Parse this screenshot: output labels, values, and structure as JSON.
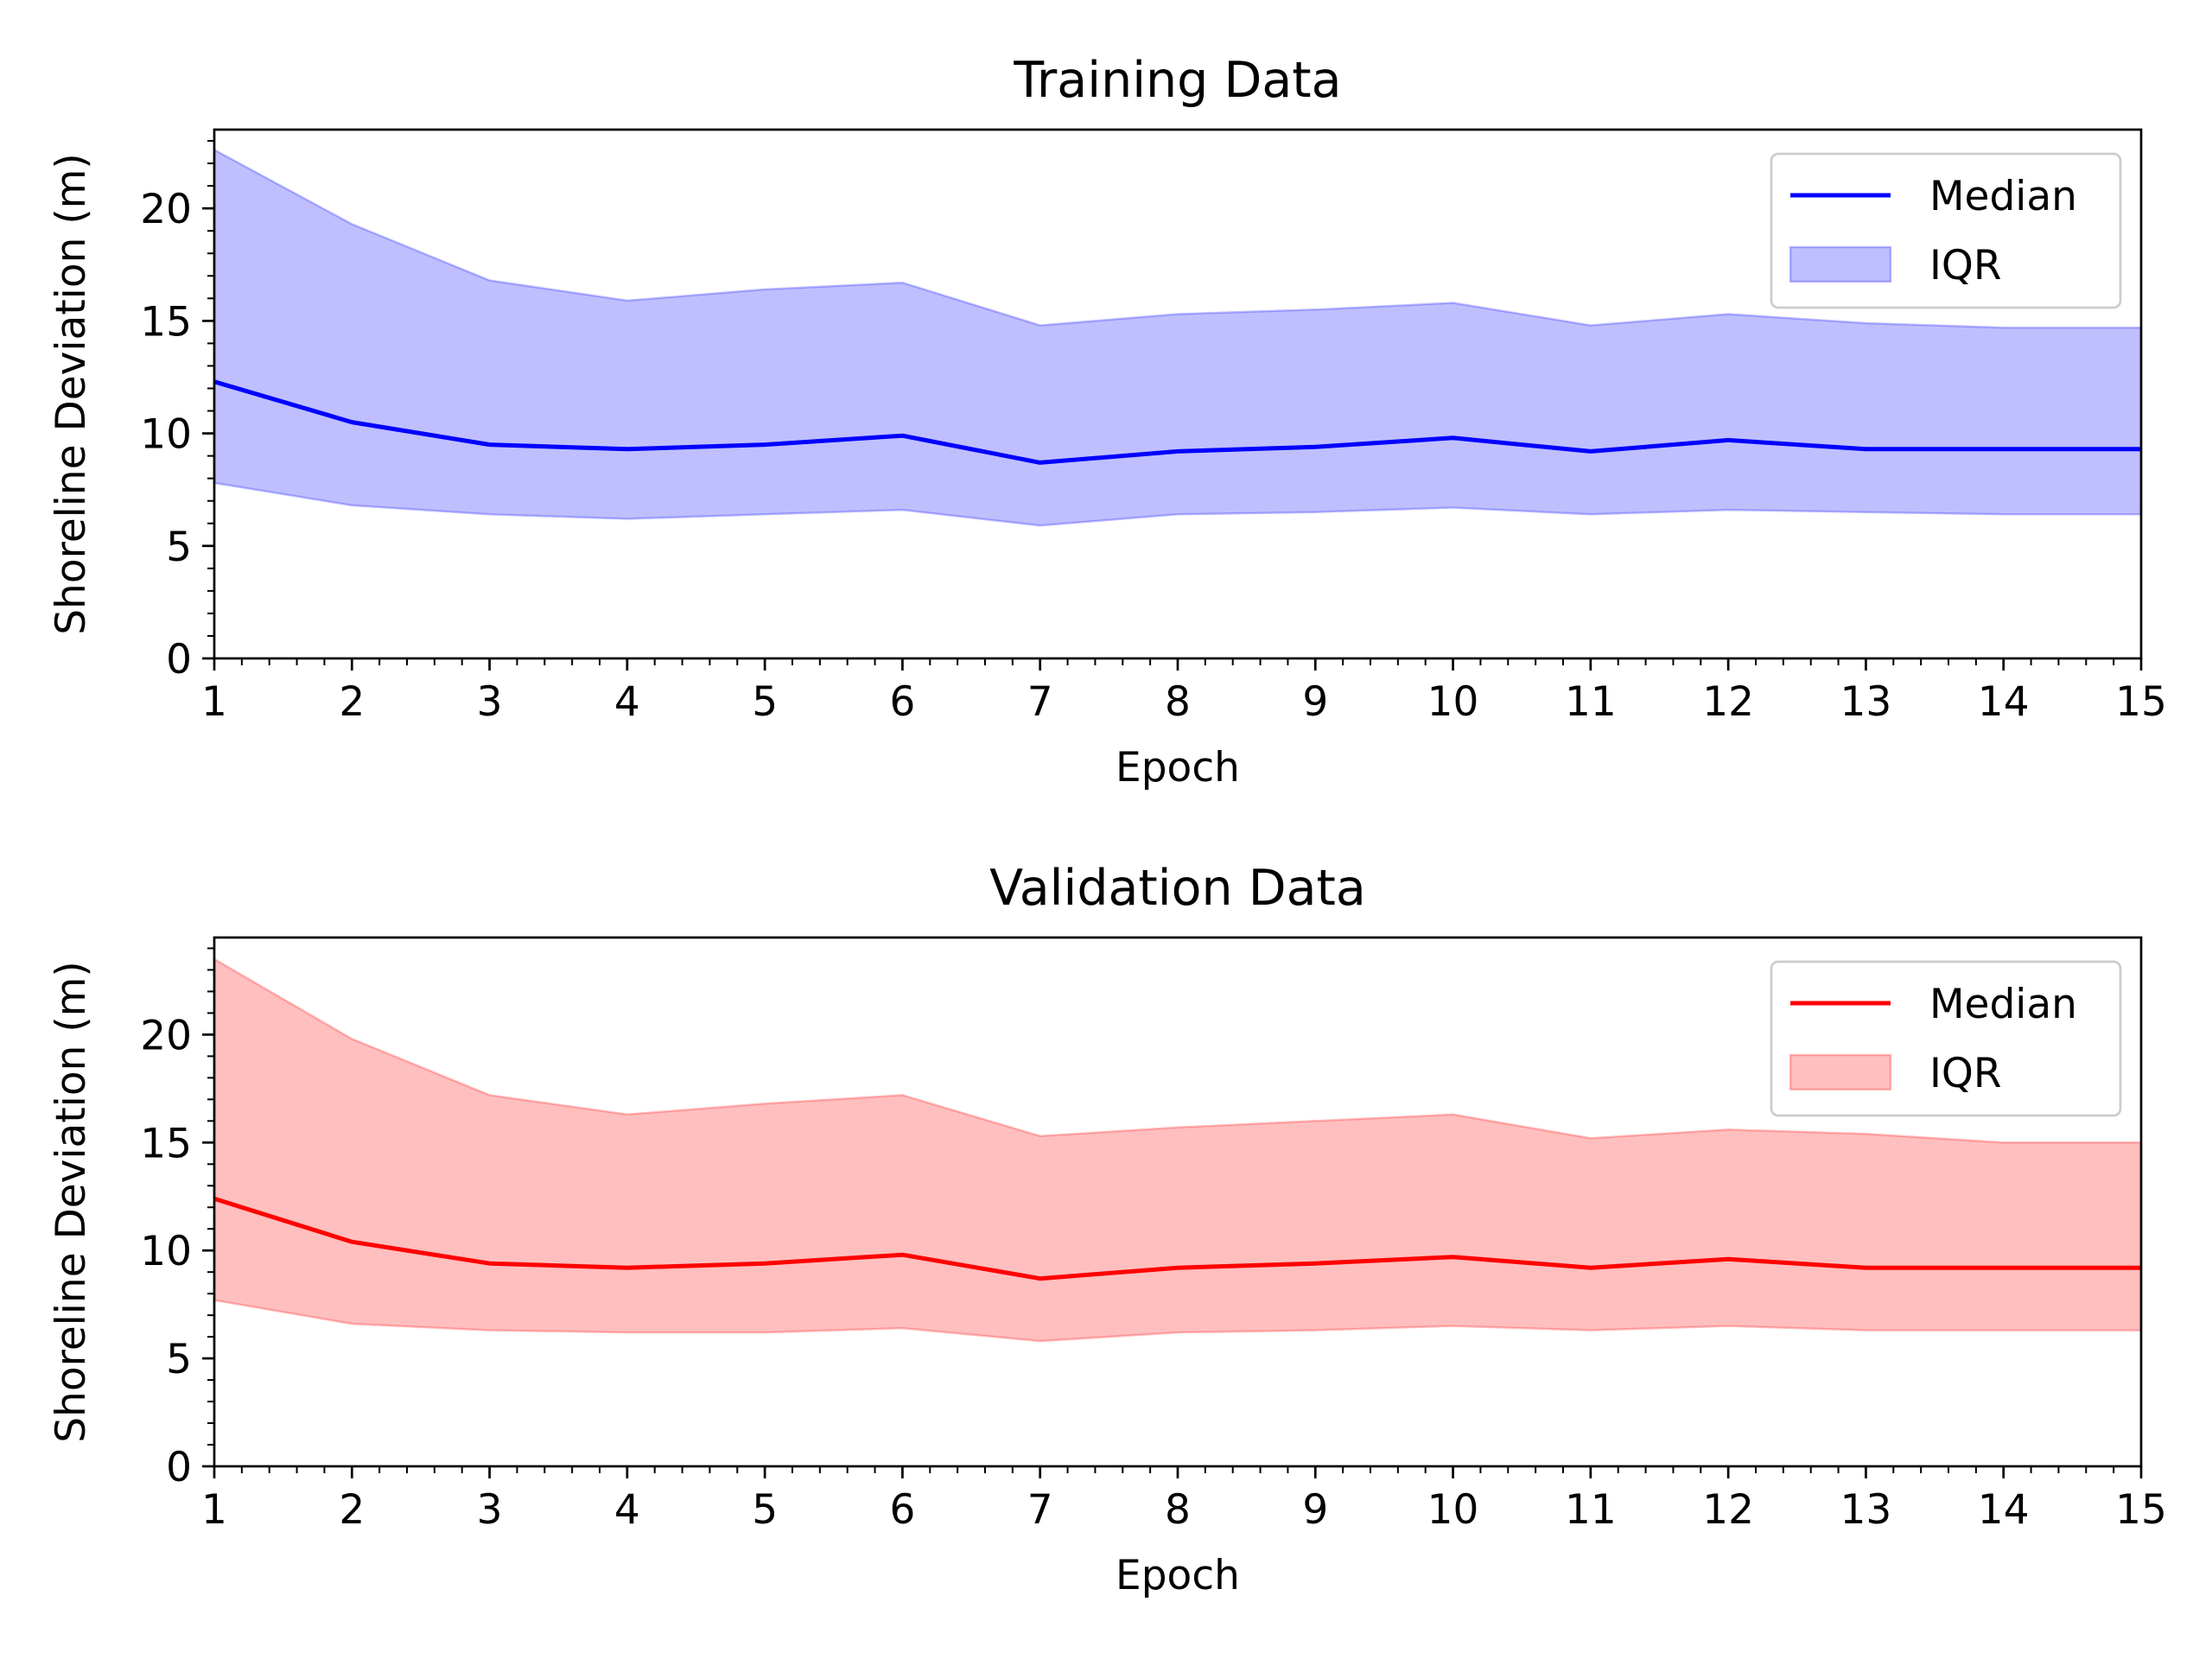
{
  "chart_data": [
    {
      "type": "area",
      "title": "Training Data",
      "xlabel": "Epoch",
      "ylabel": "Shoreline Deviation (m)",
      "xlim": [
        1,
        15
      ],
      "ylim": [
        0,
        23.5
      ],
      "x": [
        1,
        2,
        3,
        4,
        5,
        6,
        7,
        8,
        9,
        10,
        11,
        12,
        13,
        14,
        15
      ],
      "xticks": [
        1,
        2,
        3,
        4,
        5,
        6,
        7,
        8,
        9,
        10,
        11,
        12,
        13,
        14,
        15
      ],
      "yticks": [
        0,
        5,
        10,
        15,
        20
      ],
      "color": "#0000ff",
      "fill_color": "#bfbfff",
      "legend_position": "top-right",
      "grid": false,
      "series": [
        {
          "name": "Median",
          "kind": "line",
          "values": [
            12.3,
            10.5,
            9.5,
            9.3,
            9.5,
            9.9,
            8.7,
            9.2,
            9.4,
            9.8,
            9.2,
            9.7,
            9.3,
            9.3,
            9.3
          ]
        },
        {
          "name": "IQR",
          "kind": "band",
          "lower": [
            7.8,
            6.8,
            6.4,
            6.2,
            6.4,
            6.6,
            5.9,
            6.4,
            6.5,
            6.7,
            6.4,
            6.6,
            6.5,
            6.4,
            6.4
          ],
          "upper": [
            22.6,
            19.3,
            16.8,
            15.9,
            16.4,
            16.7,
            14.8,
            15.3,
            15.5,
            15.8,
            14.8,
            15.3,
            14.9,
            14.7,
            14.7
          ]
        }
      ]
    },
    {
      "type": "area",
      "title": "Validation Data",
      "xlabel": "Epoch",
      "ylabel": "Shoreline Deviation (m)",
      "xlim": [
        1,
        15
      ],
      "ylim": [
        0,
        24.5
      ],
      "x": [
        1,
        2,
        3,
        4,
        5,
        6,
        7,
        8,
        9,
        10,
        11,
        12,
        13,
        14,
        15
      ],
      "xticks": [
        1,
        2,
        3,
        4,
        5,
        6,
        7,
        8,
        9,
        10,
        11,
        12,
        13,
        14,
        15
      ],
      "yticks": [
        0,
        5,
        10,
        15,
        20
      ],
      "color": "#ff0000",
      "fill_color": "#ffbfbf",
      "legend_position": "top-right",
      "grid": false,
      "series": [
        {
          "name": "Median",
          "kind": "line",
          "values": [
            12.4,
            10.4,
            9.4,
            9.2,
            9.4,
            9.8,
            8.7,
            9.2,
            9.4,
            9.7,
            9.2,
            9.6,
            9.2,
            9.2,
            9.2
          ]
        },
        {
          "name": "IQR",
          "kind": "band",
          "lower": [
            7.7,
            6.6,
            6.3,
            6.2,
            6.2,
            6.4,
            5.8,
            6.2,
            6.3,
            6.5,
            6.3,
            6.5,
            6.3,
            6.3,
            6.3
          ],
          "upper": [
            23.5,
            19.8,
            17.2,
            16.3,
            16.8,
            17.2,
            15.3,
            15.7,
            16.0,
            16.3,
            15.2,
            15.6,
            15.4,
            15.0,
            15.0
          ]
        }
      ]
    }
  ]
}
